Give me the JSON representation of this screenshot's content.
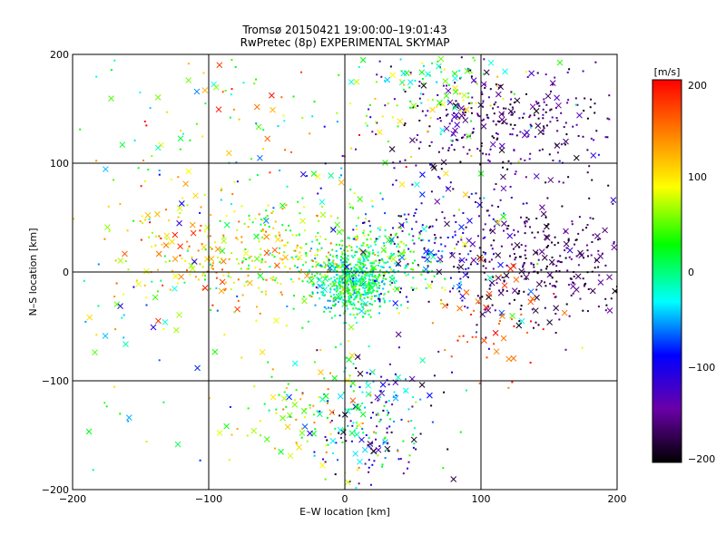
{
  "chart_data": {
    "type": "scatter",
    "title": "Tromsø 20150421 19:00:00–19:01:43",
    "subtitle": "RwPretec (8p) EXPERIMENTAL SKYMAP",
    "xlabel": "E–W location [km]",
    "ylabel": "N–S location [km]",
    "xlim": [
      -200,
      200
    ],
    "ylim": [
      -200,
      200
    ],
    "x_ticks": [
      -200,
      -100,
      0,
      100,
      200
    ],
    "y_ticks": [
      -200,
      -100,
      0,
      100,
      200
    ],
    "x_tick_labels": [
      "−200",
      "−100",
      "0",
      "100",
      "200"
    ],
    "y_tick_labels": [
      "−200",
      "−100",
      "0",
      "100",
      "200"
    ],
    "grid": true,
    "colorbar": {
      "unit_label": "[m/s]",
      "min": -200,
      "max": 200,
      "ticks": [
        200,
        100,
        0,
        -100,
        -200
      ],
      "tick_labels": [
        "200",
        "100",
        "0",
        "−100",
        "−200"
      ],
      "colors": [
        "#000000",
        "#6a00a8",
        "#0000ff",
        "#00ffff",
        "#00ff00",
        "#ffff00",
        "#ff8000",
        "#ff0000"
      ]
    },
    "markers": {
      "small": "dot",
      "large": "x"
    },
    "point_density_note_kept_out": "",
    "clusters": [
      {
        "cx": 5,
        "cy": -10,
        "sx": 14,
        "sy": 14,
        "n": 520,
        "vmin": -60,
        "vmax": 60,
        "cross_frac": 0.04
      },
      {
        "cx": 20,
        "cy": 10,
        "sx": 25,
        "sy": 18,
        "n": 260,
        "vmin": -40,
        "vmax": 80,
        "cross_frac": 0.05
      },
      {
        "cx": -50,
        "cy": 15,
        "sx": 35,
        "sy": 25,
        "n": 260,
        "vmin": 0,
        "vmax": 160,
        "cross_frac": 0.12
      },
      {
        "cx": -120,
        "cy": 20,
        "sx": 30,
        "sy": 30,
        "n": 110,
        "vmin": 60,
        "vmax": 200,
        "cross_frac": 0.25
      },
      {
        "cx": 110,
        "cy": 140,
        "sx": 40,
        "sy": 25,
        "n": 320,
        "vmin": -200,
        "vmax": -120,
        "cross_frac": 0.18
      },
      {
        "cx": 65,
        "cy": 170,
        "sx": 30,
        "sy": 18,
        "n": 90,
        "vmin": -40,
        "vmax": 120,
        "cross_frac": 0.25
      },
      {
        "cx": 150,
        "cy": 10,
        "sx": 35,
        "sy": 30,
        "n": 320,
        "vmin": -200,
        "vmax": -140,
        "cross_frac": 0.15
      },
      {
        "cx": 75,
        "cy": 20,
        "sx": 35,
        "sy": 30,
        "n": 180,
        "vmin": -180,
        "vmax": -60,
        "cross_frac": 0.15
      },
      {
        "cx": 20,
        "cy": -140,
        "sx": 25,
        "sy": 35,
        "n": 220,
        "vmin": -200,
        "vmax": 40,
        "cross_frac": 0.25
      },
      {
        "cx": -30,
        "cy": -130,
        "sx": 30,
        "sy": 30,
        "n": 90,
        "vmin": 20,
        "vmax": 160,
        "cross_frac": 0.25
      },
      {
        "cx": 110,
        "cy": -50,
        "sx": 20,
        "sy": 25,
        "n": 50,
        "vmin": 140,
        "vmax": 200,
        "cross_frac": 0.35
      },
      {
        "cx": -60,
        "cy": 140,
        "sx": 70,
        "sy": 35,
        "n": 90,
        "vmin": -60,
        "vmax": 200,
        "cross_frac": 0.3
      },
      {
        "cx": -150,
        "cy": -80,
        "sx": 40,
        "sy": 70,
        "n": 50,
        "vmin": -80,
        "vmax": 120,
        "cross_frac": 0.3
      },
      {
        "cx": 0,
        "cy": 60,
        "sx": 110,
        "sy": 60,
        "n": 160,
        "vmin": -120,
        "vmax": 120,
        "cross_frac": 0.2
      }
    ]
  }
}
